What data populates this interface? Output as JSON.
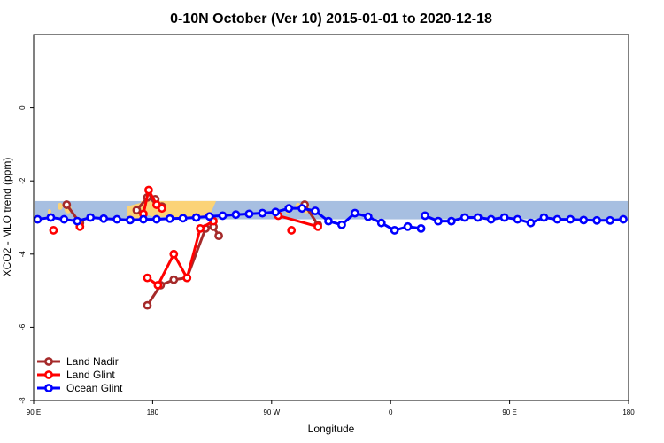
{
  "chart_data": {
    "type": "line",
    "title": "0-10N October (Ver 10)   2015-01-01 to 2020-12-18",
    "xlabel": "Longitude",
    "ylabel": "XCO2 - MLO trend (ppm)",
    "xlim": [
      -90,
      360
    ],
    "ylim": [
      -8,
      2
    ],
    "x_ticks": [
      -90,
      0,
      90,
      180,
      270,
      360
    ],
    "x_tick_labels": [
      "90 E",
      "180",
      "90 W",
      "0",
      "90 E",
      "180"
    ],
    "y_ticks": [
      0,
      -2,
      -4,
      -6,
      -8
    ],
    "y_tick_labels": [
      "0",
      "-2",
      "-4",
      "-6",
      "-8"
    ],
    "map_band": {
      "y_top": -2.55,
      "y_bottom": -3.05,
      "ocean_color": "#a7bfe1",
      "land_color": "#fbd377"
    },
    "series": [
      {
        "name": "Land Nadir",
        "color": "#a52a2a",
        "segments": [
          [
            [
              -65,
              -2.65
            ],
            [
              -55,
              -3.15
            ]
          ],
          [
            [
              -12,
              -2.8
            ],
            [
              -4,
              -2.45
            ],
            [
              2,
              -2.5
            ],
            [
              7,
              -2.7
            ]
          ],
          [
            [
              -4,
              -5.4
            ],
            [
              6,
              -4.85
            ],
            [
              16,
              -4.7
            ],
            [
              26,
              -4.65
            ],
            [
              40,
              -3.3
            ],
            [
              46,
              -3.25
            ],
            [
              50,
              -3.5
            ]
          ],
          [
            [
              115,
              -2.65
            ],
            [
              125,
              -3.2
            ]
          ]
        ],
        "points": [
          [
            -65,
            -2.65
          ],
          [
            -55,
            -3.15
          ],
          [
            -12,
            -2.8
          ],
          [
            -4,
            -2.45
          ],
          [
            2,
            -2.5
          ],
          [
            7,
            -2.7
          ],
          [
            -4,
            -5.4
          ],
          [
            6,
            -4.85
          ],
          [
            16,
            -4.7
          ],
          [
            26,
            -4.65
          ],
          [
            40,
            -3.3
          ],
          [
            46,
            -3.25
          ],
          [
            50,
            -3.5
          ],
          [
            115,
            -2.65
          ],
          [
            125,
            -3.2
          ]
        ]
      },
      {
        "name": "Land Glint",
        "color": "#ff0000",
        "segments": [
          [
            [
              -7,
              -2.9
            ],
            [
              -3,
              -2.25
            ],
            [
              3,
              -2.65
            ],
            [
              7,
              -2.75
            ]
          ],
          [
            [
              -4,
              -4.65
            ],
            [
              4,
              -4.85
            ],
            [
              16,
              -4.0
            ],
            [
              26,
              -4.65
            ],
            [
              36,
              -3.3
            ],
            [
              46,
              -3.1
            ]
          ],
          [
            [
              95,
              -2.95
            ],
            [
              125,
              -3.25
            ]
          ]
        ],
        "points": [
          [
            -75,
            -3.35
          ],
          [
            -55,
            -3.25
          ],
          [
            -7,
            -2.9
          ],
          [
            -3,
            -2.25
          ],
          [
            3,
            -2.65
          ],
          [
            7,
            -2.75
          ],
          [
            -4,
            -4.65
          ],
          [
            4,
            -4.85
          ],
          [
            16,
            -4.0
          ],
          [
            26,
            -4.65
          ],
          [
            36,
            -3.3
          ],
          [
            46,
            -3.1
          ],
          [
            95,
            -2.95
          ],
          [
            105,
            -3.35
          ],
          [
            125,
            -3.25
          ]
        ]
      },
      {
        "name": "Ocean Glint",
        "color": "#0000ff",
        "segments": [
          [
            [
              -87,
              -3.05
            ],
            [
              -77,
              -3.0
            ],
            [
              -67,
              -3.05
            ],
            [
              -57,
              -3.1
            ],
            [
              -47,
              -3.0
            ],
            [
              -37,
              -3.03
            ],
            [
              -27,
              -3.05
            ],
            [
              -17,
              -3.07
            ],
            [
              -7,
              -3.05
            ],
            [
              3,
              -3.05
            ],
            [
              13,
              -3.03
            ],
            [
              23,
              -3.02
            ],
            [
              33,
              -3.0
            ],
            [
              43,
              -2.97
            ],
            [
              53,
              -2.95
            ],
            [
              63,
              -2.92
            ],
            [
              73,
              -2.9
            ],
            [
              83,
              -2.88
            ],
            [
              93,
              -2.85
            ],
            [
              103,
              -2.75
            ],
            [
              113,
              -2.75
            ],
            [
              123,
              -2.82
            ],
            [
              133,
              -3.1
            ],
            [
              143,
              -3.2
            ],
            [
              153,
              -2.88
            ],
            [
              163,
              -2.98
            ],
            [
              173,
              -3.15
            ],
            [
              183,
              -3.35
            ],
            [
              193,
              -3.25
            ],
            [
              203,
              -3.3
            ]
          ],
          [
            [
              206,
              -2.95
            ],
            [
              216,
              -3.1
            ],
            [
              226,
              -3.1
            ],
            [
              236,
              -3.0
            ],
            [
              246,
              -3.0
            ],
            [
              256,
              -3.05
            ],
            [
              266,
              -3.0
            ],
            [
              276,
              -3.05
            ],
            [
              286,
              -3.15
            ],
            [
              296,
              -3.0
            ],
            [
              306,
              -3.05
            ],
            [
              316,
              -3.05
            ],
            [
              326,
              -3.07
            ],
            [
              336,
              -3.08
            ],
            [
              346,
              -3.08
            ],
            [
              356,
              -3.05
            ]
          ]
        ],
        "points": []
      }
    ],
    "legend": {
      "position": "bottom-left",
      "entries": [
        "Land Nadir",
        "Land Glint",
        "Ocean Glint"
      ]
    }
  }
}
